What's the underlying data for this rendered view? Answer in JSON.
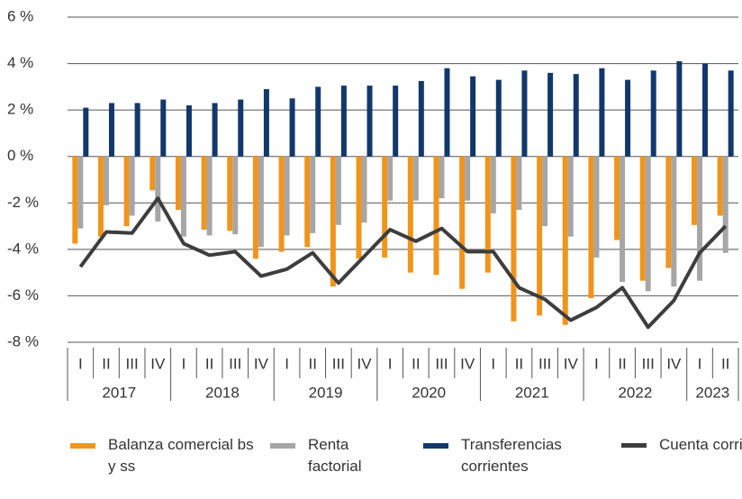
{
  "chart_data": {
    "type": "bar",
    "categories": [
      "I",
      "II",
      "III",
      "IV",
      "I",
      "II",
      "III",
      "IV",
      "I",
      "II",
      "III",
      "IV",
      "I",
      "II",
      "III",
      "IV",
      "I",
      "II",
      "III",
      "IV",
      "I",
      "II",
      "III",
      "IV",
      "I",
      "II"
    ],
    "years": [
      "2017",
      "2018",
      "2019",
      "2020",
      "2021",
      "2022",
      "2023"
    ],
    "series": [
      {
        "name": "Balanza comercial bs y ss",
        "type": "bar",
        "color": "#f0951c",
        "values": [
          -3.75,
          -3.45,
          -3.0,
          -1.45,
          -2.3,
          -3.15,
          -3.2,
          -4.4,
          -4.1,
          -3.9,
          -5.6,
          -4.4,
          -4.35,
          -5.0,
          -5.1,
          -5.7,
          -5.0,
          -7.1,
          -6.85,
          -7.25,
          -6.1,
          -3.6,
          -5.35,
          -4.8,
          -2.95,
          -2.55
        ]
      },
      {
        "name": "Renta factorial",
        "type": "bar",
        "color": "#a6a6a6",
        "values": [
          -3.1,
          -2.1,
          -2.55,
          -2.8,
          -3.45,
          -3.4,
          -3.35,
          -3.9,
          -3.4,
          -3.3,
          -2.95,
          -2.85,
          -1.9,
          -1.9,
          -1.8,
          -1.9,
          -2.45,
          -2.3,
          -3.0,
          -3.45,
          -4.35,
          -5.4,
          -5.8,
          -5.6,
          -5.35,
          -4.15
        ]
      },
      {
        "name": "Transferencias corrientes",
        "type": "bar",
        "color": "#12386b",
        "values": [
          2.1,
          2.3,
          2.3,
          2.45,
          2.2,
          2.3,
          2.45,
          2.9,
          2.5,
          3.0,
          3.05,
          3.05,
          3.05,
          3.25,
          3.8,
          3.45,
          3.3,
          3.7,
          3.6,
          3.55,
          3.8,
          3.3,
          3.7,
          4.1,
          4.0,
          3.7
        ]
      },
      {
        "name": "Cuenta corriente",
        "type": "line",
        "color": "#3d3d3d",
        "values": [
          -4.75,
          -3.25,
          -3.3,
          -1.8,
          -3.75,
          -4.25,
          -4.1,
          -5.15,
          -4.85,
          -4.15,
          -5.45,
          -4.3,
          -3.15,
          -3.65,
          -3.1,
          -4.1,
          -4.1,
          -5.65,
          -6.15,
          -7.05,
          -6.5,
          -5.65,
          -7.35,
          -6.2,
          -4.15,
          -3.0
        ]
      }
    ],
    "ylim": [
      -8,
      6
    ],
    "yticks": [
      {
        "value": -8,
        "label": "-8 %"
      },
      {
        "value": -6,
        "label": "-6 %"
      },
      {
        "value": -4,
        "label": "-4 %"
      },
      {
        "value": -2,
        "label": "-2 %"
      },
      {
        "value": 0,
        "label": "0 %"
      },
      {
        "value": 2,
        "label": "2 %"
      },
      {
        "value": 4,
        "label": "4 %"
      },
      {
        "value": 6,
        "label": "6 %"
      }
    ],
    "grid": true
  }
}
